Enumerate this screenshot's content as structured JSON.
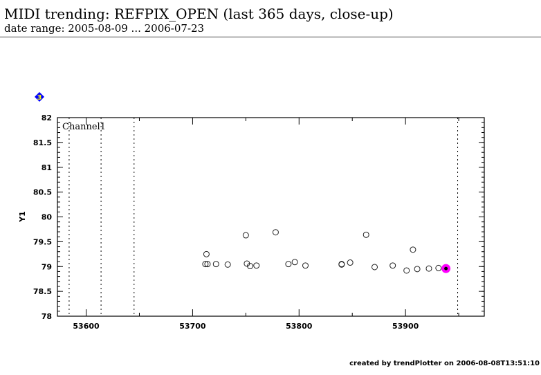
{
  "header": {
    "title": "MIDI trending: REFPIX_OPEN (last 365 days, close-up)",
    "subtitle": "date range: 2005-08-09 ... 2006-07-23"
  },
  "badge": {
    "label": "3",
    "icon": "blue-diamond-icon",
    "color": "#0000ff",
    "text_color": "#ffff00"
  },
  "footer": "created by trendPlotter on 2006-08-08T13:51:10",
  "chart_data": {
    "type": "scatter",
    "title": "",
    "xlabel": "",
    "ylabel": "Y1",
    "panel_label": "Channel1",
    "xlim": [
      53573,
      53974
    ],
    "ylim": [
      78,
      82
    ],
    "xticks": [
      "53600",
      "53700",
      "53800",
      "53900"
    ],
    "yticks": [
      "78",
      "78.5",
      "79",
      "79.5",
      "80",
      "80.5",
      "81",
      "81.5",
      "82"
    ],
    "vertical_markers": [
      53584,
      53614,
      53645,
      53949
    ],
    "points": [
      [
        53713,
        79.25
      ],
      [
        53712,
        79.05
      ],
      [
        53714,
        79.05
      ],
      [
        53722,
        79.05
      ],
      [
        53733,
        79.04
      ],
      [
        53750,
        79.63
      ],
      [
        53751,
        79.06
      ],
      [
        53754,
        79.01
      ],
      [
        53760,
        79.02
      ],
      [
        53778,
        79.69
      ],
      [
        53790,
        79.05
      ],
      [
        53796,
        79.09
      ],
      [
        53806,
        79.02
      ],
      [
        53840,
        79.05
      ],
      [
        53840,
        79.04
      ],
      [
        53848,
        79.08
      ],
      [
        53863,
        79.64
      ],
      [
        53871,
        78.99
      ],
      [
        53888,
        79.02
      ],
      [
        53907,
        79.34
      ],
      [
        53901,
        78.92
      ],
      [
        53911,
        78.95
      ],
      [
        53922,
        78.96
      ],
      [
        53931,
        78.97
      ]
    ],
    "highlight_point": [
      53938,
      78.96
    ],
    "highlight_color": "#ff00ff"
  }
}
